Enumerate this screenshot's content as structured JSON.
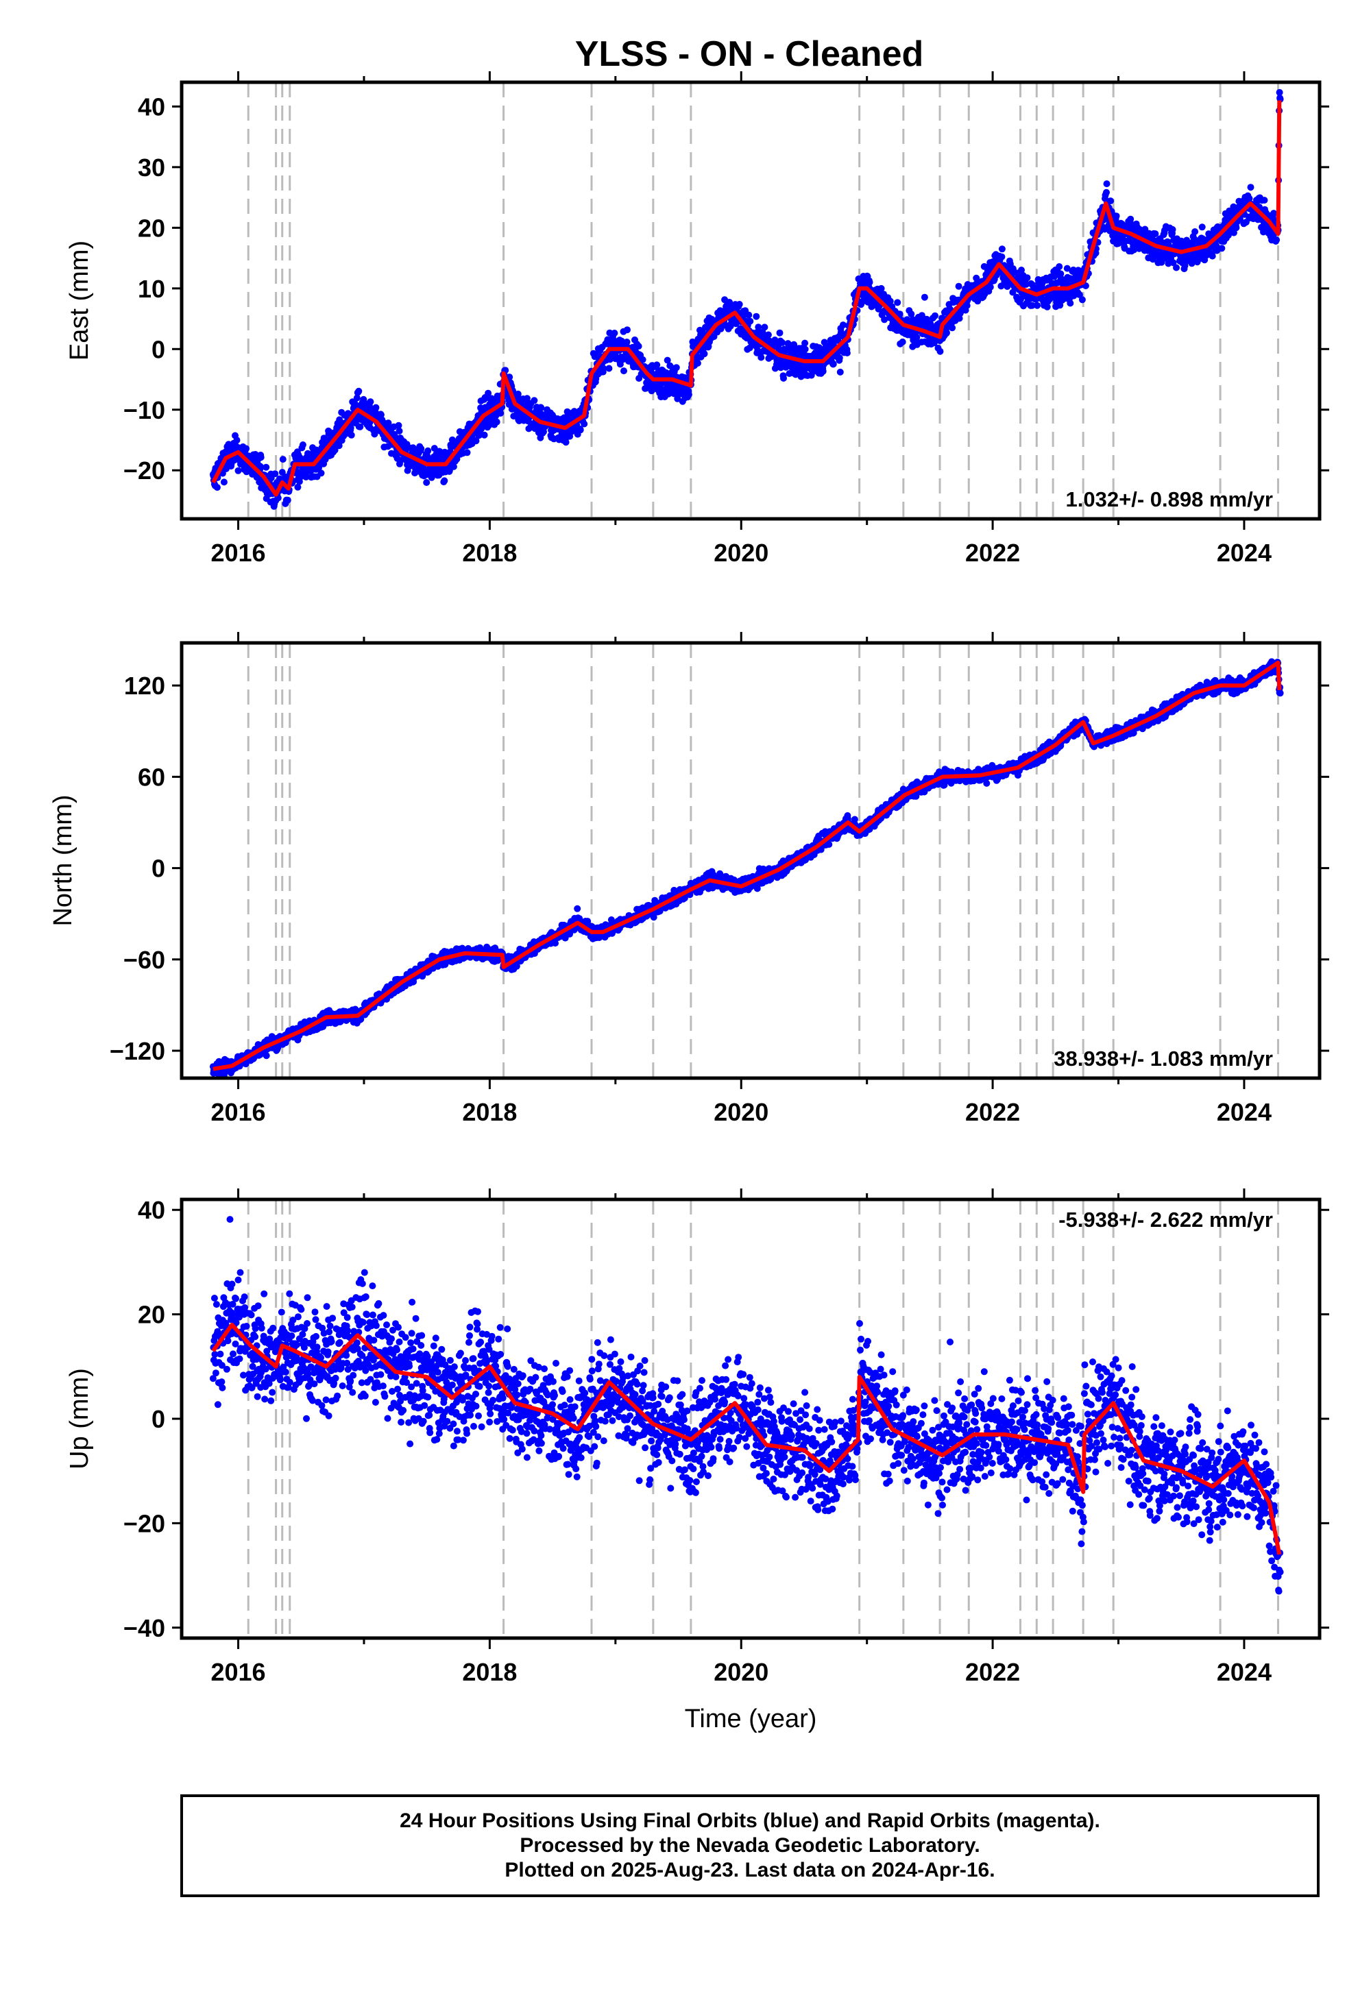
{
  "chart_data": [
    {
      "type": "scatter",
      "title": "YLSS  - ON - Cleaned",
      "ylabel": "East (mm)",
      "xlabel": "",
      "xlim": [
        2015.55,
        2024.6
      ],
      "ylim": [
        -28,
        44
      ],
      "yticks": [
        -20,
        -10,
        0,
        10,
        20,
        30,
        40
      ],
      "xticks": [
        2016,
        2018,
        2020,
        2022,
        2024
      ],
      "grid": false,
      "rate_label": "1.032+/- 0.898 mm/yr",
      "rate_position": "bottom-right",
      "colors": {
        "observations": "#0000ff",
        "model": "#ff0000",
        "events": "#bbbbbb"
      },
      "event_lines": [
        2016.08,
        2016.3,
        2016.35,
        2016.41,
        2018.11,
        2018.81,
        2019.3,
        2019.6,
        2020.94,
        2021.29,
        2021.58,
        2021.81,
        2022.22,
        2022.35,
        2022.48,
        2022.72,
        2022.96,
        2023.81,
        2024.27
      ],
      "model": {
        "x": [
          2015.8,
          2015.9,
          2016.0,
          2016.1,
          2016.2,
          2016.3,
          2016.35,
          2016.4,
          2016.45,
          2016.6,
          2016.8,
          2016.95,
          2017.1,
          2017.3,
          2017.5,
          2017.65,
          2017.8,
          2017.95,
          2018.1,
          2018.11,
          2018.2,
          2018.4,
          2018.6,
          2018.75,
          2018.81,
          2018.95,
          2019.1,
          2019.25,
          2019.3,
          2019.45,
          2019.6,
          2019.61,
          2019.8,
          2019.95,
          2020.1,
          2020.3,
          2020.5,
          2020.65,
          2020.85,
          2020.94,
          2021.0,
          2021.15,
          2021.29,
          2021.45,
          2021.58,
          2021.6,
          2021.81,
          2021.95,
          2022.05,
          2022.22,
          2022.35,
          2022.48,
          2022.6,
          2022.72,
          2022.8,
          2022.9,
          2022.96,
          2023.1,
          2023.3,
          2023.5,
          2023.7,
          2023.81,
          2023.95,
          2024.05,
          2024.2,
          2024.27,
          2024.28
        ],
        "y": [
          -22,
          -18,
          -17,
          -19,
          -21,
          -24,
          -22,
          -23,
          -19,
          -19,
          -14,
          -10,
          -12,
          -17,
          -19,
          -19,
          -15,
          -11,
          -9,
          -4,
          -9,
          -12,
          -13,
          -11,
          -4,
          0,
          0,
          -4,
          -5,
          -5,
          -6,
          -1,
          4,
          6,
          2,
          -1,
          -2,
          -2,
          2,
          10,
          10,
          7,
          4,
          3,
          2,
          4,
          9,
          11,
          14,
          10,
          9,
          10,
          10,
          11,
          17,
          24,
          20,
          19,
          17,
          16,
          17,
          19,
          22,
          24,
          21,
          19,
          41
        ]
      }
    },
    {
      "type": "scatter",
      "ylabel": "North (mm)",
      "xlabel": "",
      "xlim": [
        2015.55,
        2024.6
      ],
      "ylim": [
        -138,
        148
      ],
      "yticks": [
        -120,
        -60,
        0,
        60,
        120
      ],
      "xticks": [
        2016,
        2018,
        2020,
        2022,
        2024
      ],
      "grid": false,
      "rate_label": "38.938+/- 1.083 mm/yr",
      "rate_position": "bottom-right",
      "colors": {
        "observations": "#0000ff",
        "model": "#ff0000",
        "events": "#bbbbbb"
      },
      "event_lines": [
        2016.08,
        2016.3,
        2016.35,
        2016.41,
        2018.11,
        2018.81,
        2019.3,
        2019.6,
        2020.94,
        2021.29,
        2021.58,
        2021.81,
        2022.22,
        2022.35,
        2022.48,
        2022.72,
        2022.96,
        2023.81,
        2024.27
      ],
      "model": {
        "x": [
          2015.8,
          2015.95,
          2016.2,
          2016.5,
          2016.7,
          2016.95,
          2017.3,
          2017.6,
          2017.8,
          2018.1,
          2018.11,
          2018.4,
          2018.7,
          2018.81,
          2018.9,
          2019.3,
          2019.6,
          2019.75,
          2020.0,
          2020.3,
          2020.6,
          2020.85,
          2020.94,
          2021.3,
          2021.6,
          2021.9,
          2022.2,
          2022.5,
          2022.72,
          2022.8,
          2022.96,
          2023.3,
          2023.6,
          2023.81,
          2024.0,
          2024.27,
          2024.28
        ],
        "y": [
          -132,
          -130,
          -118,
          -107,
          -98,
          -97,
          -75,
          -60,
          -56,
          -57,
          -65,
          -50,
          -36,
          -42,
          -42,
          -27,
          -14,
          -8,
          -12,
          -1,
          14,
          30,
          24,
          48,
          60,
          61,
          66,
          81,
          96,
          82,
          87,
          100,
          115,
          120,
          120,
          135,
          117
        ]
      }
    },
    {
      "type": "scatter",
      "ylabel": "Up (mm)",
      "xlabel": "Time (year)",
      "xlim": [
        2015.55,
        2024.6
      ],
      "ylim": [
        -42,
        42
      ],
      "yticks": [
        -40,
        -20,
        0,
        20,
        40
      ],
      "xticks": [
        2016,
        2018,
        2020,
        2022,
        2024
      ],
      "grid": false,
      "rate_label": "-5.938+/- 2.622 mm/yr",
      "rate_position": "top-right",
      "colors": {
        "observations": "#0000ff",
        "model": "#ff0000",
        "events": "#bbbbbb"
      },
      "event_lines": [
        2016.08,
        2016.3,
        2016.35,
        2016.41,
        2018.11,
        2018.81,
        2019.3,
        2019.6,
        2020.94,
        2021.29,
        2021.58,
        2021.81,
        2022.22,
        2022.35,
        2022.48,
        2022.72,
        2022.96,
        2023.81,
        2024.27
      ],
      "model": {
        "x": [
          2015.8,
          2015.95,
          2016.1,
          2016.3,
          2016.35,
          2016.45,
          2016.7,
          2016.95,
          2017.25,
          2017.5,
          2017.7,
          2018.0,
          2018.2,
          2018.5,
          2018.7,
          2018.95,
          2019.3,
          2019.6,
          2019.95,
          2020.2,
          2020.5,
          2020.7,
          2020.93,
          2020.94,
          2021.2,
          2021.6,
          2021.85,
          2022.1,
          2022.35,
          2022.6,
          2022.72,
          2022.73,
          2022.96,
          2023.2,
          2023.5,
          2023.75,
          2024.0,
          2024.2,
          2024.28
        ],
        "y": [
          13,
          18,
          14,
          10,
          14,
          13,
          10,
          16,
          9,
          8,
          4,
          10,
          3,
          1,
          -2,
          7,
          -1,
          -4,
          3,
          -5,
          -6,
          -10,
          -4,
          8,
          -2,
          -7,
          -3,
          -3,
          -4,
          -5,
          -14,
          -3,
          3,
          -8,
          -10,
          -13,
          -8,
          -16,
          -26
        ]
      }
    }
  ],
  "caption": {
    "line1": "24 Hour Positions Using Final Orbits (blue) and Rapid Orbits (magenta).",
    "line2": "Processed by the Nevada Geodetic Laboratory.",
    "line3": "Plotted on 2025-Aug-23. Last data on 2024-Apr-16."
  }
}
